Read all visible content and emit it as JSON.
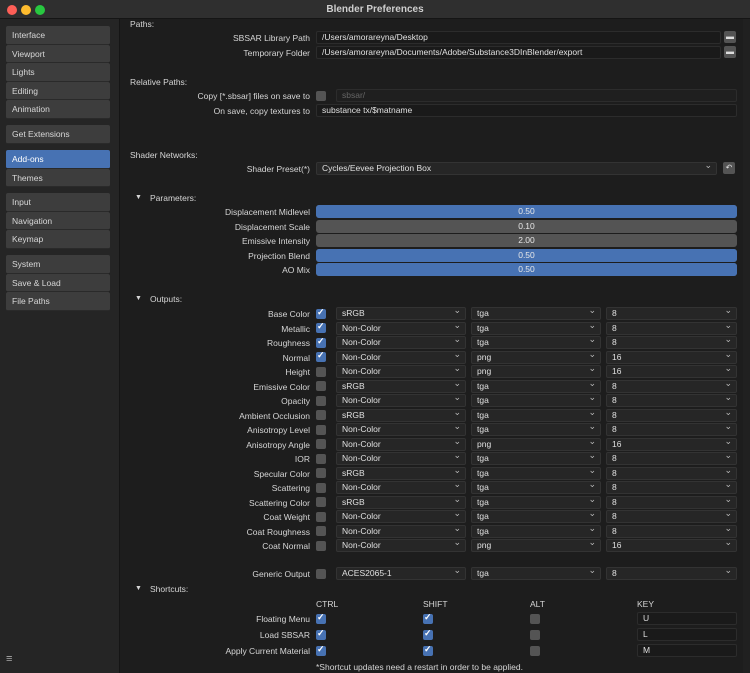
{
  "window": {
    "title": "Blender Preferences"
  },
  "sidebar": {
    "groups": [
      [
        {
          "label": "Interface"
        },
        {
          "label": "Viewport"
        },
        {
          "label": "Lights"
        },
        {
          "label": "Editing"
        },
        {
          "label": "Animation"
        }
      ],
      [
        {
          "label": "Get Extensions"
        }
      ],
      [
        {
          "label": "Add-ons",
          "active": true
        },
        {
          "label": "Themes"
        }
      ],
      [
        {
          "label": "Input"
        },
        {
          "label": "Navigation"
        },
        {
          "label": "Keymap"
        }
      ],
      [
        {
          "label": "System"
        },
        {
          "label": "Save & Load"
        },
        {
          "label": "File Paths"
        }
      ]
    ]
  },
  "paths": {
    "section": "Paths:",
    "library_label": "SBSAR Library Path",
    "library_value": "/Users/amorareyna/Desktop",
    "temp_label": "Temporary Folder",
    "temp_value": "/Users/amorareyna/Documents/Adobe/Substance3DInBlender/export"
  },
  "relative": {
    "section": "Relative Paths:",
    "copy_label": "Copy [*.sbsar] files on save to",
    "copy_checked": false,
    "copy_value": "sbsar/",
    "textures_label": "On save, copy textures to",
    "textures_value": "substance tx/$matname"
  },
  "shader": {
    "section": "Shader Networks:",
    "preset_label": "Shader Preset(*)",
    "preset_value": "Cycles/Eevee Projection Box"
  },
  "parameters": {
    "section": "Parameters:",
    "items": [
      {
        "label": "Displacement Midlevel",
        "value": "0.50",
        "highlighted": true
      },
      {
        "label": "Displacement Scale",
        "value": "0.10",
        "highlighted": false
      },
      {
        "label": "Emissive Intensity",
        "value": "2.00",
        "highlighted": false
      },
      {
        "label": "Projection Blend",
        "value": "0.50",
        "highlighted": true
      },
      {
        "label": "AO Mix",
        "value": "0.50",
        "highlighted": true
      }
    ]
  },
  "outputs": {
    "section": "Outputs:",
    "items": [
      {
        "label": "Base Color",
        "enabled": true,
        "colorspace": "sRGB",
        "format": "tga",
        "bitdepth": "8"
      },
      {
        "label": "Metallic",
        "enabled": true,
        "colorspace": "Non-Color",
        "format": "tga",
        "bitdepth": "8"
      },
      {
        "label": "Roughness",
        "enabled": true,
        "colorspace": "Non-Color",
        "format": "tga",
        "bitdepth": "8"
      },
      {
        "label": "Normal",
        "enabled": true,
        "colorspace": "Non-Color",
        "format": "png",
        "bitdepth": "16"
      },
      {
        "label": "Height",
        "enabled": false,
        "colorspace": "Non-Color",
        "format": "png",
        "bitdepth": "16"
      },
      {
        "label": "Emissive Color",
        "enabled": false,
        "colorspace": "sRGB",
        "format": "tga",
        "bitdepth": "8"
      },
      {
        "label": "Opacity",
        "enabled": false,
        "colorspace": "Non-Color",
        "format": "tga",
        "bitdepth": "8"
      },
      {
        "label": "Ambient Occlusion",
        "enabled": false,
        "colorspace": "sRGB",
        "format": "tga",
        "bitdepth": "8"
      },
      {
        "label": "Anisotropy Level",
        "enabled": false,
        "colorspace": "Non-Color",
        "format": "tga",
        "bitdepth": "8"
      },
      {
        "label": "Anisotropy Angle",
        "enabled": false,
        "colorspace": "Non-Color",
        "format": "png",
        "bitdepth": "16"
      },
      {
        "label": "IOR",
        "enabled": false,
        "colorspace": "Non-Color",
        "format": "tga",
        "bitdepth": "8"
      },
      {
        "label": "Specular Color",
        "enabled": false,
        "colorspace": "sRGB",
        "format": "tga",
        "bitdepth": "8"
      },
      {
        "label": "Scattering",
        "enabled": false,
        "colorspace": "Non-Color",
        "format": "tga",
        "bitdepth": "8"
      },
      {
        "label": "Scattering Color",
        "enabled": false,
        "colorspace": "sRGB",
        "format": "tga",
        "bitdepth": "8"
      },
      {
        "label": "Coat Weight",
        "enabled": false,
        "colorspace": "Non-Color",
        "format": "tga",
        "bitdepth": "8"
      },
      {
        "label": "Coat Roughness",
        "enabled": false,
        "colorspace": "Non-Color",
        "format": "tga",
        "bitdepth": "8"
      },
      {
        "label": "Coat Normal",
        "enabled": false,
        "colorspace": "Non-Color",
        "format": "png",
        "bitdepth": "16"
      }
    ],
    "generic": {
      "label": "Generic Output",
      "enabled": false,
      "colorspace": "ACES2065-1",
      "format": "tga",
      "bitdepth": "8"
    }
  },
  "shortcuts": {
    "section": "Shortcuts:",
    "headers": [
      "CTRL",
      "SHIFT",
      "ALT",
      "KEY"
    ],
    "items": [
      {
        "label": "Floating Menu",
        "ctrl": true,
        "shift": true,
        "alt": false,
        "key": "U"
      },
      {
        "label": "Load SBSAR",
        "ctrl": true,
        "shift": true,
        "alt": false,
        "key": "L"
      },
      {
        "label": "Apply Current Material",
        "ctrl": true,
        "shift": true,
        "alt": false,
        "key": "M"
      }
    ],
    "note": "*Shortcut updates need a restart in order to be applied."
  },
  "colors": {
    "accent": "#4772b3",
    "background": "#1d1d1d",
    "checkbox_off": "#545454"
  }
}
